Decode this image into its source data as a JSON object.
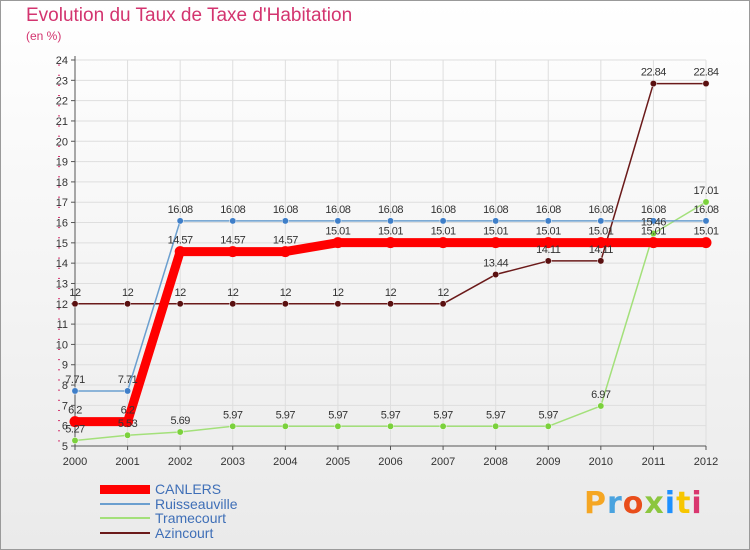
{
  "page": {
    "title": "Evolution du Taux de Taxe d'Habitation",
    "subtitle": "(en %)"
  },
  "chart_data": {
    "type": "line",
    "title": "Evolution du Taux de Taxe d'Habitation",
    "ylabel": "(en %)",
    "xlabel": "",
    "x": [
      2000,
      2001,
      2002,
      2003,
      2004,
      2005,
      2006,
      2007,
      2008,
      2009,
      2010,
      2011,
      2012
    ],
    "ylim": [
      5,
      24
    ],
    "yticks": [
      5,
      6,
      7,
      8,
      9,
      10,
      11,
      12,
      13,
      14,
      15,
      16,
      17,
      18,
      19,
      20,
      21,
      22,
      23,
      24
    ],
    "grid": true,
    "legend_position": "bottom-left",
    "series": [
      {
        "name": "CANLERS",
        "color": "#ff0000",
        "values": [
          6.2,
          6.2,
          14.57,
          14.57,
          14.57,
          15.01,
          15.01,
          15.01,
          15.01,
          15.01,
          15.01,
          15.01,
          15.01
        ],
        "labels": [
          "6.2",
          "6.2",
          "14.57",
          "14.57",
          "14.57",
          "15.01",
          "15.01",
          "15.01",
          "15.01",
          "15.01",
          "15.01",
          "15.01",
          "15.01"
        ]
      },
      {
        "name": "Ruisseauville",
        "color": "#6b9fcf",
        "values": [
          7.71,
          7.71,
          16.08,
          16.08,
          16.08,
          16.08,
          16.08,
          16.08,
          16.08,
          16.08,
          16.08,
          16.08,
          16.08
        ],
        "labels": [
          "7.71",
          "7.71",
          "16.08",
          "16.08",
          "16.08",
          "16.08",
          "16.08",
          "16.08",
          "16.08",
          "16.08",
          "16.08",
          "16.08",
          "16.08"
        ]
      },
      {
        "name": "Tramecourt",
        "color": "#a3e07a",
        "values": [
          5.27,
          5.53,
          5.69,
          5.97,
          5.97,
          5.97,
          5.97,
          5.97,
          5.97,
          5.97,
          6.97,
          15.46,
          17.01
        ],
        "labels": [
          "5.27",
          "5.53",
          "5.69",
          "5.97",
          "5.97",
          "5.97",
          "5.97",
          "5.97",
          "5.97",
          "5.97",
          "6.97",
          "15.46",
          "17.01"
        ]
      },
      {
        "name": "Azincourt",
        "color": "#6b1a1a",
        "values": [
          12,
          12,
          12,
          12,
          12,
          12,
          12,
          12,
          13.44,
          14.11,
          14.11,
          22.84,
          22.84
        ],
        "labels": [
          "12",
          "12",
          "12",
          "12",
          "12",
          "12",
          "12",
          "12",
          "13.44",
          "14.11",
          "14.11",
          "22.84",
          "22.84"
        ]
      }
    ]
  },
  "logo": {
    "text": "Proxiti",
    "colors": [
      "#f5a623",
      "#4aa3df",
      "#e94e1b",
      "#8cc63f",
      "#1e90ff",
      "#f7c600",
      "#d9366f"
    ]
  }
}
